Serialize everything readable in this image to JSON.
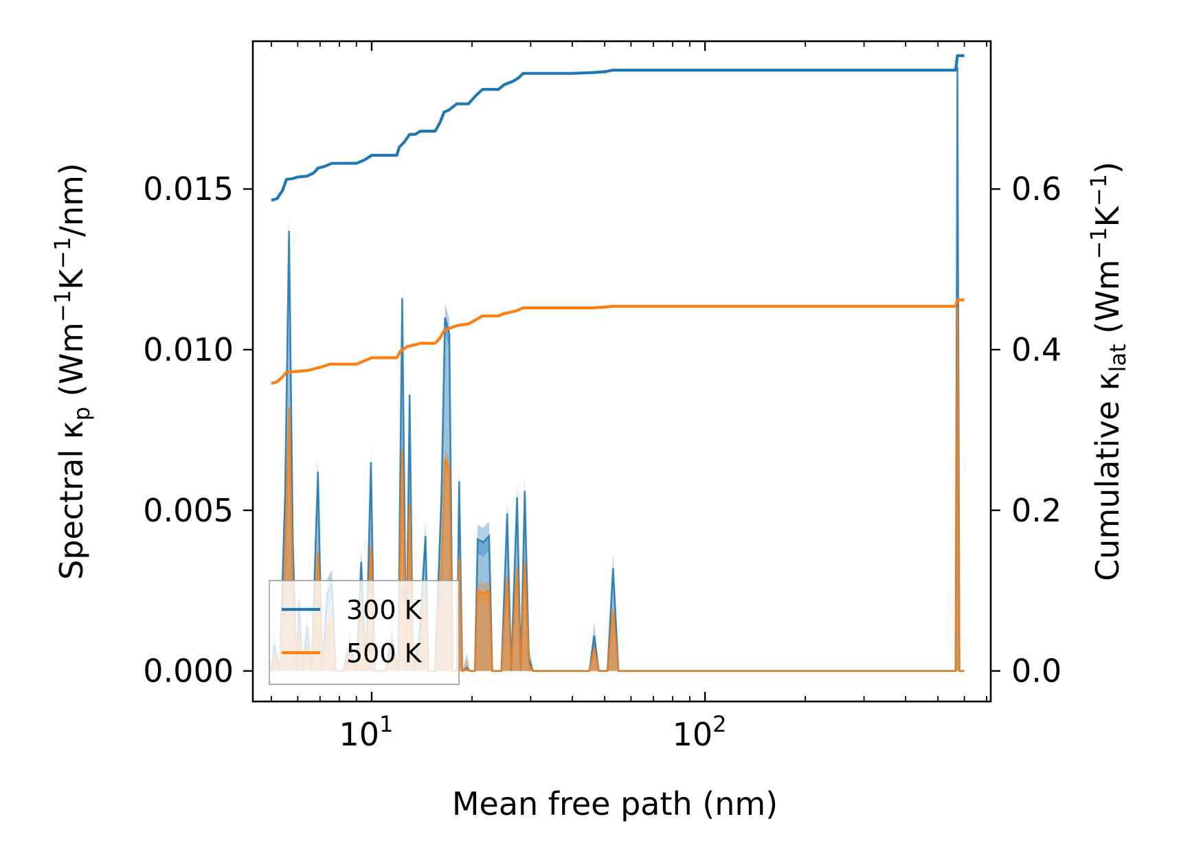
{
  "chart_data": {
    "type": "line",
    "xscale": "log",
    "xlabel": "Mean free path (nm)",
    "ylabel": {
      "prefix": "Spectral κ",
      "sub": "p",
      "suffix_open": " (Wm",
      "sup1": "−1",
      "mid": "K",
      "sup2": "−1",
      "suffix_close": "/nm)"
    },
    "y2label": {
      "prefix": "Cumulative κ",
      "sub": "lat",
      "suffix_open": " (Wm",
      "sup1": "−1",
      "mid": "K",
      "sup2": "−1",
      "suffix_close": ")"
    },
    "xlim": [
      4.4,
      720
    ],
    "ylim": [
      -0.00095,
      0.0196
    ],
    "y2lim": [
      -0.038,
      0.784
    ],
    "x_ticks": [
      {
        "value": 10,
        "base": "10",
        "exp": "1"
      },
      {
        "value": 100,
        "base": "10",
        "exp": "2"
      }
    ],
    "y_ticks": [
      {
        "value": 0.0,
        "label": "0.000"
      },
      {
        "value": 0.005,
        "label": "0.005"
      },
      {
        "value": 0.01,
        "label": "0.010"
      },
      {
        "value": 0.015,
        "label": "0.015"
      }
    ],
    "y2_ticks": [
      {
        "value": 0.0,
        "label": "0.0"
      },
      {
        "value": 0.2,
        "label": "0.2"
      },
      {
        "value": 0.4,
        "label": "0.4"
      },
      {
        "value": 0.6,
        "label": "0.6"
      }
    ],
    "legend": {
      "position": "lower-left",
      "entries": [
        {
          "label": "300 K",
          "color": "#1f77b4"
        },
        {
          "label": "500 K",
          "color": "#ff7f0e"
        }
      ]
    },
    "series": [
      {
        "name": "300 K",
        "axis": "spectral",
        "color": "#1f77b4",
        "points": [
          [
            5.0,
            0.0
          ],
          [
            5.1,
            0.0008
          ],
          [
            5.3,
            0.0
          ],
          [
            5.5,
            0.0055
          ],
          [
            5.65,
            0.0137
          ],
          [
            5.8,
            0.004
          ],
          [
            5.95,
            0.0
          ],
          [
            6.05,
            0.0022
          ],
          [
            6.2,
            0.0
          ],
          [
            6.4,
            0.0014
          ],
          [
            6.6,
            0.0
          ],
          [
            6.9,
            0.0062
          ],
          [
            7.1,
            0.0
          ],
          [
            7.35,
            0.0024
          ],
          [
            7.6,
            0.0027
          ],
          [
            7.8,
            0.0
          ],
          [
            8.2,
            0.0
          ],
          [
            8.6,
            0.0008
          ],
          [
            9.0,
            0.0
          ],
          [
            9.3,
            0.0034
          ],
          [
            9.6,
            0.0
          ],
          [
            9.95,
            0.0065
          ],
          [
            10.2,
            0.0
          ],
          [
            11.0,
            0.0
          ],
          [
            11.5,
            0.001
          ],
          [
            12.0,
            0.0
          ],
          [
            12.35,
            0.0116
          ],
          [
            12.7,
            0.0
          ],
          [
            13.0,
            0.0086
          ],
          [
            13.3,
            0.0
          ],
          [
            13.9,
            0.001
          ],
          [
            14.5,
            0.0042
          ],
          [
            14.8,
            0.0
          ],
          [
            15.5,
            0.0
          ],
          [
            16.2,
            0.0055
          ],
          [
            16.6,
            0.011
          ],
          [
            17.1,
            0.0105
          ],
          [
            17.5,
            0.0
          ],
          [
            18.0,
            0.0
          ],
          [
            18.3,
            0.0059
          ],
          [
            18.7,
            0.0
          ],
          [
            19.3,
            0.0001
          ],
          [
            19.7,
            0.0
          ],
          [
            20.4,
            0.0
          ],
          [
            20.8,
            0.0041
          ],
          [
            21.6,
            0.004
          ],
          [
            22.5,
            0.0042
          ],
          [
            23.0,
            0.0
          ],
          [
            24.5,
            0.0
          ],
          [
            25.5,
            0.0049
          ],
          [
            26.2,
            0.0
          ],
          [
            27.3,
            0.0054
          ],
          [
            28.0,
            0.0
          ],
          [
            28.8,
            0.0056
          ],
          [
            29.6,
            0.0004
          ],
          [
            30.5,
            0.0
          ],
          [
            45.0,
            0.0
          ],
          [
            46.5,
            0.0011
          ],
          [
            48.0,
            0.0
          ],
          [
            51.0,
            0.0
          ],
          [
            53.0,
            0.0032
          ],
          [
            55.0,
            0.0
          ],
          [
            565.0,
            0.0
          ],
          [
            572.0,
            0.0188
          ],
          [
            580.0,
            0.0
          ],
          [
            600.0,
            0.0
          ]
        ],
        "band": 0.00045
      },
      {
        "name": "500 K",
        "axis": "spectral",
        "color": "#ff7f0e",
        "points": [
          [
            5.0,
            0.0
          ],
          [
            5.1,
            0.0005
          ],
          [
            5.3,
            0.0
          ],
          [
            5.5,
            0.0033
          ],
          [
            5.65,
            0.0082
          ],
          [
            5.8,
            0.0024
          ],
          [
            5.95,
            0.0
          ],
          [
            6.05,
            0.0013
          ],
          [
            6.2,
            0.0
          ],
          [
            6.4,
            0.0008
          ],
          [
            6.6,
            0.0
          ],
          [
            6.9,
            0.0037
          ],
          [
            7.1,
            0.0
          ],
          [
            7.35,
            0.0014
          ],
          [
            7.6,
            0.0016
          ],
          [
            7.8,
            0.0
          ],
          [
            8.2,
            0.0
          ],
          [
            8.6,
            0.0005
          ],
          [
            9.0,
            0.0
          ],
          [
            9.3,
            0.002
          ],
          [
            9.6,
            0.0
          ],
          [
            9.95,
            0.0039
          ],
          [
            10.2,
            0.0
          ],
          [
            11.0,
            0.0
          ],
          [
            11.5,
            0.0006
          ],
          [
            12.0,
            0.0
          ],
          [
            12.35,
            0.0069
          ],
          [
            12.7,
            0.0
          ],
          [
            13.0,
            0.0052
          ],
          [
            13.3,
            0.0
          ],
          [
            13.9,
            0.0006
          ],
          [
            14.5,
            0.0025
          ],
          [
            14.8,
            0.0
          ],
          [
            15.5,
            0.0
          ],
          [
            16.2,
            0.0033
          ],
          [
            16.6,
            0.0066
          ],
          [
            17.1,
            0.0063
          ],
          [
            17.5,
            0.0
          ],
          [
            18.0,
            0.0
          ],
          [
            18.3,
            0.0035
          ],
          [
            18.7,
            0.0
          ],
          [
            19.3,
            6e-05
          ],
          [
            19.7,
            0.0
          ],
          [
            20.4,
            0.0
          ],
          [
            20.8,
            0.0025
          ],
          [
            21.6,
            0.0024
          ],
          [
            22.5,
            0.0025
          ],
          [
            23.0,
            0.0
          ],
          [
            24.5,
            0.0
          ],
          [
            25.5,
            0.0029
          ],
          [
            26.2,
            0.0
          ],
          [
            27.3,
            0.0032
          ],
          [
            28.0,
            0.0
          ],
          [
            28.8,
            0.0034
          ],
          [
            29.6,
            0.0002
          ],
          [
            30.5,
            0.0
          ],
          [
            45.0,
            0.0
          ],
          [
            46.5,
            0.0007
          ],
          [
            48.0,
            0.0
          ],
          [
            51.0,
            0.0
          ],
          [
            53.0,
            0.0019
          ],
          [
            55.0,
            0.0
          ],
          [
            565.0,
            0.0
          ],
          [
            572.0,
            0.0113
          ],
          [
            580.0,
            0.0
          ],
          [
            600.0,
            0.0
          ]
        ],
        "band": 0.0003
      },
      {
        "name": "300 K cumulative",
        "axis": "cumulative",
        "color": "#1f77b4",
        "points": [
          [
            5.0,
            0.586
          ],
          [
            5.2,
            0.588
          ],
          [
            5.4,
            0.598
          ],
          [
            5.55,
            0.612
          ],
          [
            5.8,
            0.613
          ],
          [
            6.0,
            0.615
          ],
          [
            6.4,
            0.616
          ],
          [
            6.7,
            0.62
          ],
          [
            6.9,
            0.626
          ],
          [
            7.2,
            0.628
          ],
          [
            7.6,
            0.632
          ],
          [
            8.5,
            0.632
          ],
          [
            9.0,
            0.632
          ],
          [
            9.5,
            0.636
          ],
          [
            10.0,
            0.642
          ],
          [
            11.0,
            0.642
          ],
          [
            11.9,
            0.642
          ],
          [
            12.1,
            0.652
          ],
          [
            12.5,
            0.658
          ],
          [
            13.0,
            0.668
          ],
          [
            13.5,
            0.668
          ],
          [
            14.0,
            0.672
          ],
          [
            15.5,
            0.672
          ],
          [
            16.0,
            0.682
          ],
          [
            16.5,
            0.696
          ],
          [
            17.0,
            0.698
          ],
          [
            18.0,
            0.706
          ],
          [
            19.5,
            0.706
          ],
          [
            20.5,
            0.716
          ],
          [
            21.5,
            0.724
          ],
          [
            24.0,
            0.724
          ],
          [
            25.0,
            0.73
          ],
          [
            26.5,
            0.734
          ],
          [
            27.5,
            0.738
          ],
          [
            28.5,
            0.744
          ],
          [
            30.0,
            0.744
          ],
          [
            40.0,
            0.744
          ],
          [
            46.0,
            0.745
          ],
          [
            50.0,
            0.746
          ],
          [
            53.0,
            0.748
          ],
          [
            100.0,
            0.748
          ],
          [
            565.0,
            0.748
          ],
          [
            572.0,
            0.766
          ],
          [
            600.0,
            0.766
          ]
        ]
      },
      {
        "name": "500 K cumulative",
        "axis": "cumulative",
        "color": "#ff7f0e",
        "points": [
          [
            5.0,
            0.358
          ],
          [
            5.2,
            0.36
          ],
          [
            5.4,
            0.366
          ],
          [
            5.55,
            0.372
          ],
          [
            6.0,
            0.373
          ],
          [
            6.4,
            0.374
          ],
          [
            6.7,
            0.376
          ],
          [
            7.0,
            0.378
          ],
          [
            7.5,
            0.382
          ],
          [
            8.5,
            0.382
          ],
          [
            9.0,
            0.382
          ],
          [
            9.5,
            0.386
          ],
          [
            10.0,
            0.39
          ],
          [
            11.0,
            0.39
          ],
          [
            11.9,
            0.39
          ],
          [
            12.2,
            0.398
          ],
          [
            12.8,
            0.404
          ],
          [
            13.5,
            0.406
          ],
          [
            14.0,
            0.408
          ],
          [
            15.5,
            0.408
          ],
          [
            16.0,
            0.414
          ],
          [
            16.5,
            0.424
          ],
          [
            17.0,
            0.426
          ],
          [
            18.0,
            0.43
          ],
          [
            19.5,
            0.432
          ],
          [
            20.5,
            0.437
          ],
          [
            21.5,
            0.442
          ],
          [
            24.0,
            0.442
          ],
          [
            25.0,
            0.445
          ],
          [
            27.0,
            0.448
          ],
          [
            28.5,
            0.452
          ],
          [
            30.0,
            0.452
          ],
          [
            46.0,
            0.452
          ],
          [
            50.0,
            0.453
          ],
          [
            53.0,
            0.454
          ],
          [
            100.0,
            0.454
          ],
          [
            565.0,
            0.454
          ],
          [
            572.0,
            0.462
          ],
          [
            600.0,
            0.462
          ]
        ]
      }
    ]
  }
}
